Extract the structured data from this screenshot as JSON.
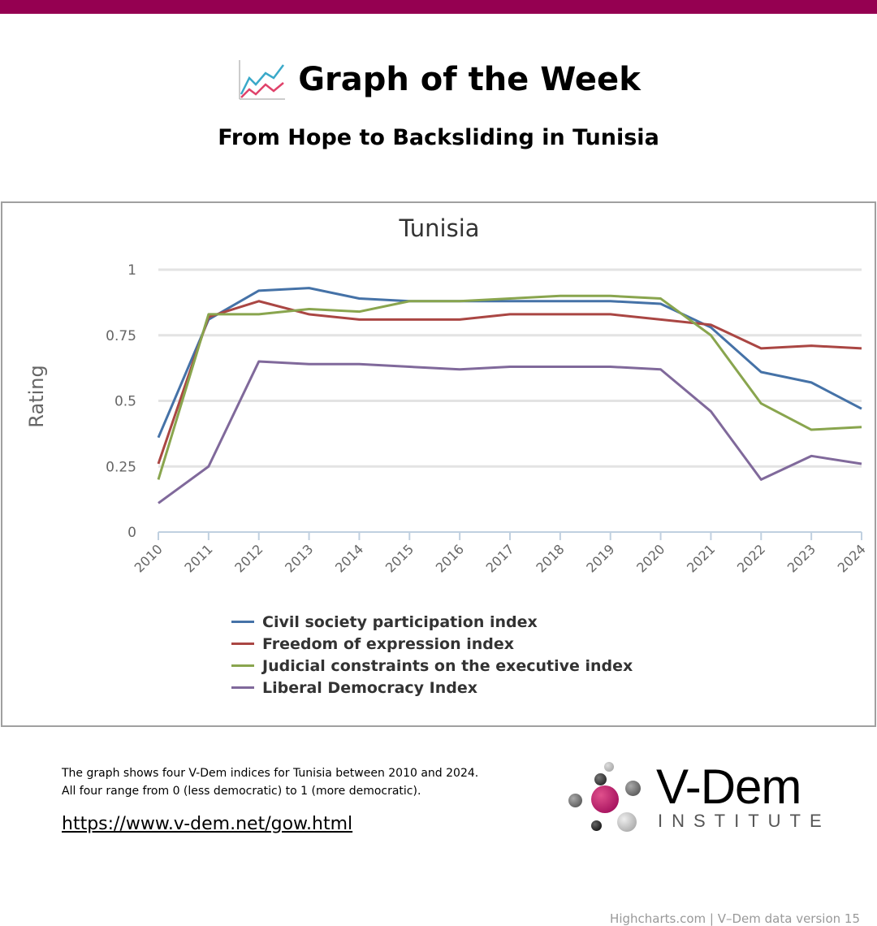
{
  "header": {
    "title": "Graph of the Week",
    "subtitle": "From Hope to Backsliding in Tunisia",
    "icon": "line-chart-icon"
  },
  "chart_data": {
    "type": "line",
    "title": "Tunisia",
    "xlabel": "",
    "ylabel": "Rating",
    "x": [
      "2010",
      "2011",
      "2012",
      "2013",
      "2014",
      "2015",
      "2016",
      "2017",
      "2018",
      "2019",
      "2020",
      "2021",
      "2022",
      "2023",
      "2024"
    ],
    "ylim": [
      0,
      1
    ],
    "yticks": [
      0,
      0.25,
      0.5,
      0.75,
      1
    ],
    "ytick_labels": [
      "0",
      "0.25",
      "0.5",
      "0.75",
      "1"
    ],
    "grid": true,
    "legend_placement": "bottom",
    "series": [
      {
        "name": "Civil society participation index",
        "color": "#4572a7",
        "values": [
          0.36,
          0.81,
          0.92,
          0.93,
          0.89,
          0.88,
          0.88,
          0.88,
          0.88,
          0.88,
          0.87,
          0.78,
          0.61,
          0.57,
          0.47
        ]
      },
      {
        "name": "Freedom of expression index",
        "color": "#aa4643",
        "values": [
          0.26,
          0.82,
          0.88,
          0.83,
          0.81,
          0.81,
          0.81,
          0.83,
          0.83,
          0.83,
          0.81,
          0.79,
          0.7,
          0.71,
          0.7
        ]
      },
      {
        "name": "Judicial constraints on the executive index",
        "color": "#89a54e",
        "values": [
          0.2,
          0.83,
          0.83,
          0.85,
          0.84,
          0.88,
          0.88,
          0.89,
          0.9,
          0.9,
          0.89,
          0.75,
          0.49,
          0.39,
          0.4
        ]
      },
      {
        "name": "Liberal Democracy Index",
        "color": "#80699b",
        "values": [
          0.11,
          0.25,
          0.65,
          0.64,
          0.64,
          0.63,
          0.62,
          0.63,
          0.63,
          0.63,
          0.62,
          0.46,
          0.2,
          0.29,
          0.26
        ]
      }
    ],
    "credits": "Highcharts.com | V–Dem data version 15"
  },
  "footer": {
    "description_line1": "The graph shows four V-Dem indices for Tunisia between 2010 and 2024.",
    "description_line2": "All four range from 0 (less democratic) to 1 (more democratic).",
    "link": "https://www.v-dem.net/gow.html",
    "logo_text": "V-Dem",
    "logo_sub": "INSTITUTE"
  },
  "colors": {
    "brand": "#950051"
  }
}
